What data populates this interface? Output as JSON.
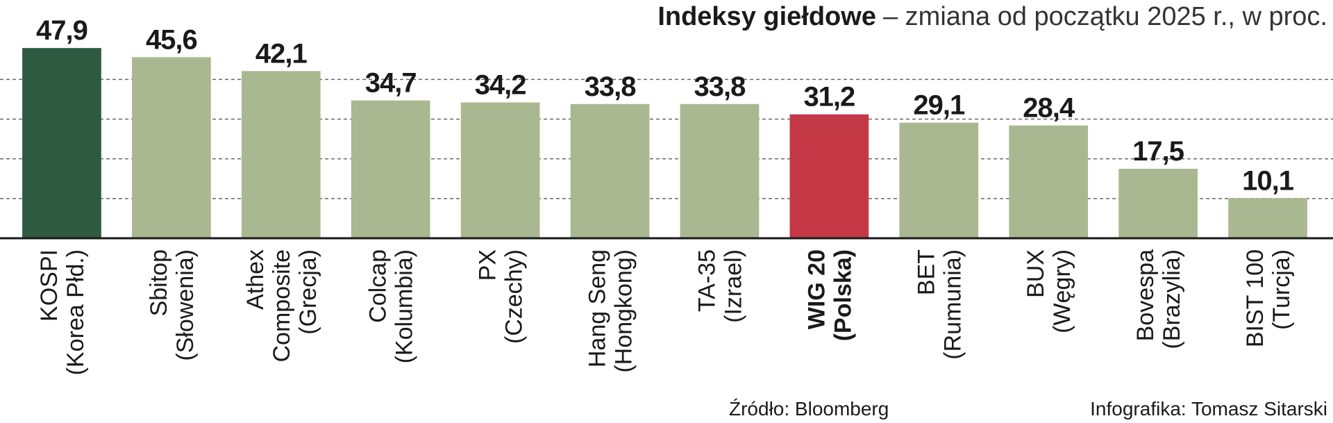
{
  "chart_data": {
    "type": "bar",
    "title": "Indeksy giełdowe",
    "subtitle": "– zmiana od początku 2025 r., w proc.",
    "categories": [
      [
        "KOSPI",
        "(Korea Płd.)"
      ],
      [
        "Sbitop",
        "(Słowenia)"
      ],
      [
        "Athex",
        "Composite",
        "(Grecja)"
      ],
      [
        "Colcap",
        "(Kolumbia)"
      ],
      [
        "PX",
        "(Czechy)"
      ],
      [
        "Hang Seng",
        "(Hongkong)"
      ],
      [
        "TA-35",
        "(Izrael)"
      ],
      [
        "WIG 20",
        "(Polska)"
      ],
      [
        "BET",
        "(Rumunia)"
      ],
      [
        "BUX",
        "(Węgry)"
      ],
      [
        "Bovespa",
        "(Brazylia)"
      ],
      [
        "BIST 100",
        "(Turcja)"
      ]
    ],
    "values": [
      47.9,
      45.6,
      42.1,
      34.7,
      34.2,
      33.8,
      33.8,
      31.2,
      29.1,
      28.4,
      17.5,
      10.1
    ],
    "value_labels": [
      "47,9",
      "45,6",
      "42,1",
      "34,7",
      "34,2",
      "33,8",
      "33,8",
      "31,2",
      "29,1",
      "28,4",
      "17,5",
      "10,1"
    ],
    "colors": [
      "#2d5a40",
      "#a9b890",
      "#a9b890",
      "#a9b890",
      "#a9b890",
      "#a9b890",
      "#a9b890",
      "#c43846",
      "#a9b890",
      "#a9b890",
      "#a9b890",
      "#a9b890"
    ],
    "bold_category": 7,
    "ylim": [
      0,
      60
    ],
    "yticks": [
      0,
      10,
      20,
      30,
      40
    ],
    "grid": true,
    "source": "Źródło: Bloomberg",
    "credit": "Infografika: Tomasz Sitarski"
  }
}
